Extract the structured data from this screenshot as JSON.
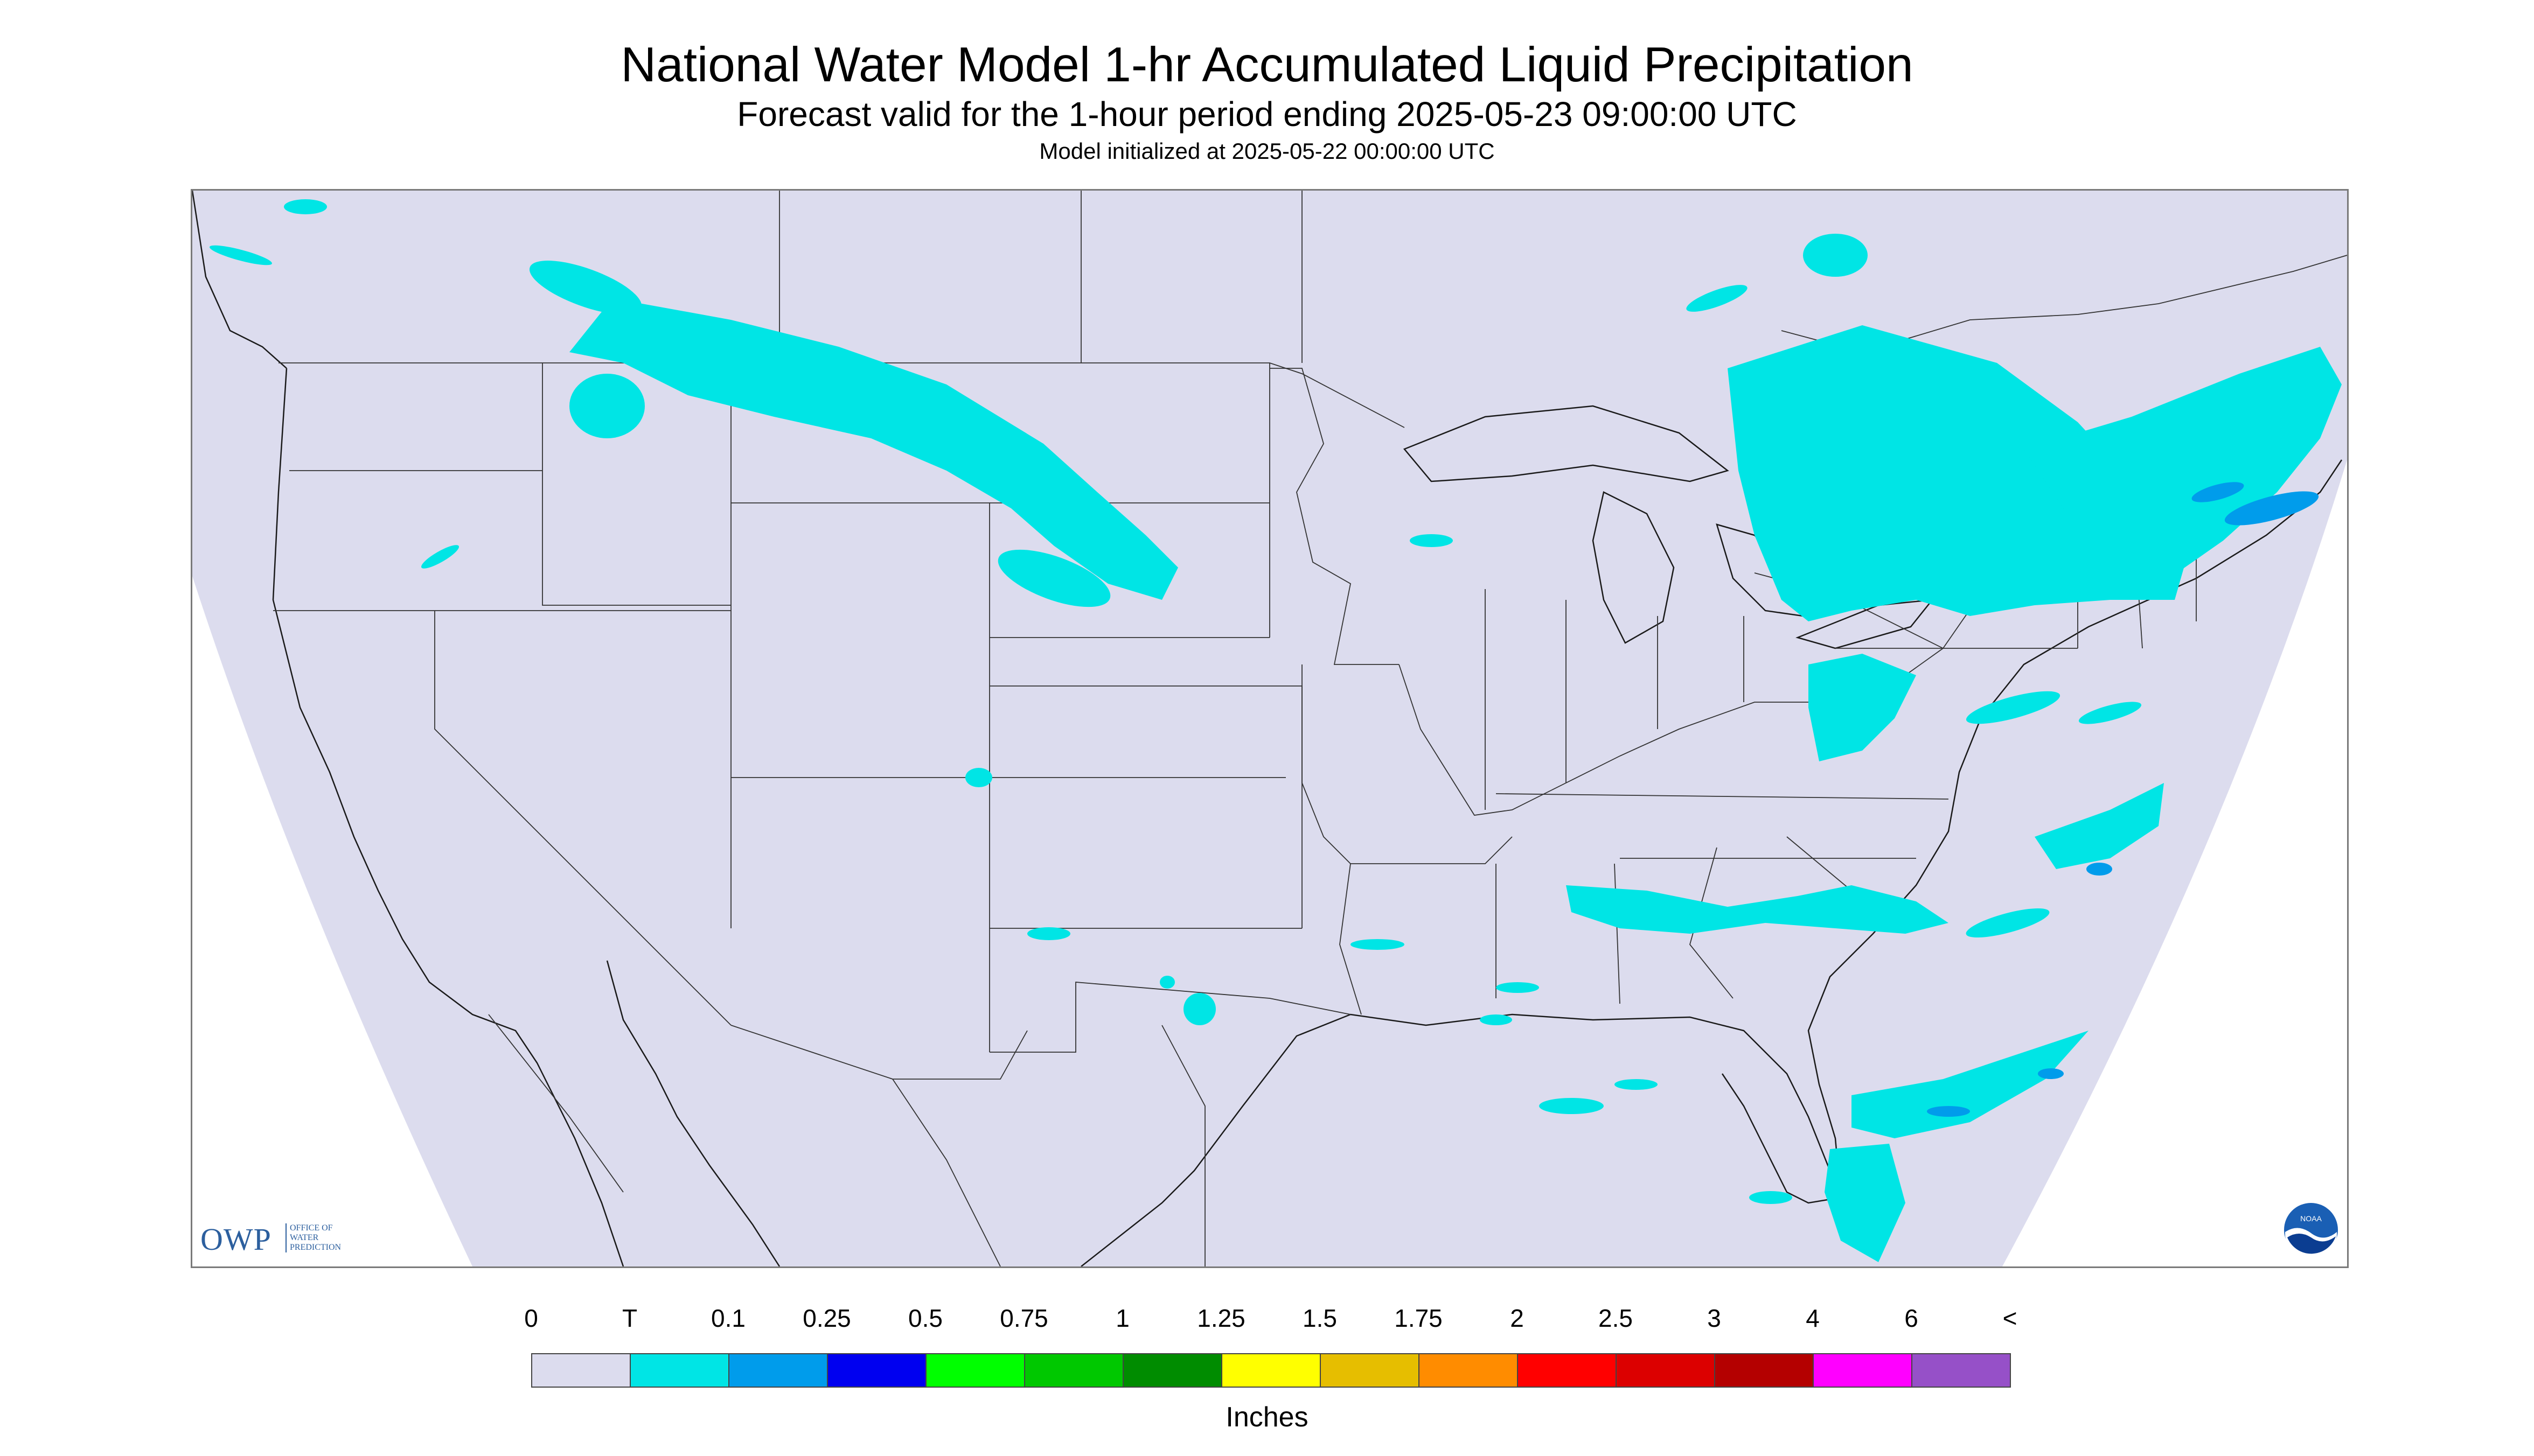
{
  "title": "National Water Model 1-hr Accumulated Liquid Precipitation",
  "subtitle": "Forecast valid for the 1-hour period ending 2025-05-23 09:00:00 UTC",
  "init_line": "Model initialized at 2025-05-22 00:00:00 UTC",
  "logo": {
    "mark": "OWP",
    "text": "OFFICE OF WATER PREDICTION",
    "noaa_icon": "noaa-logo-icon",
    "noaa_text": "NOAA"
  },
  "map": {
    "region": "CONUS",
    "background_color": "#dcdcee",
    "outside_color": "#ffffff",
    "boundary_color": "#1a1a1a",
    "precip_light_color": "#00e5e5",
    "precip_medium_color": "#009ceb"
  },
  "legend": {
    "labels": [
      "0",
      "T",
      "0.1",
      "0.25",
      "0.5",
      "0.75",
      "1",
      "1.25",
      "1.5",
      "1.75",
      "2",
      "2.5",
      "3",
      "4",
      "6",
      "<"
    ],
    "colors": [
      "#dcdcee",
      "#00e5e5",
      "#009ceb",
      "#0000f0",
      "#00ff00",
      "#00c800",
      "#008c00",
      "#ffff00",
      "#e6be00",
      "#ff8c00",
      "#ff0000",
      "#dc0000",
      "#b40000",
      "#ff00ff",
      "#9650c8"
    ],
    "units": "Inches"
  }
}
